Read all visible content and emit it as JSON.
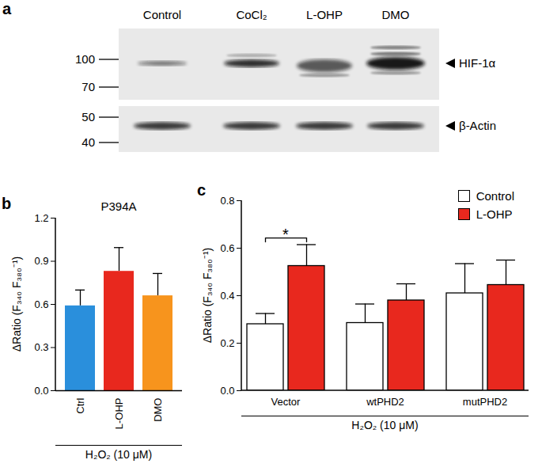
{
  "blot": {
    "panel_label": "a",
    "lanes": [
      "Control",
      "CoCl₂",
      "L-OHP",
      "DMO"
    ],
    "blots": [
      {
        "protein": "HIF-1α",
        "markers": [
          100,
          70
        ]
      },
      {
        "protein": "β-Actin",
        "markers": [
          50,
          40
        ]
      }
    ]
  },
  "chart_data": [
    {
      "type": "bar",
      "panel_label": "b",
      "title": "P394A",
      "categories": [
        "Ctrl",
        "L-OHP",
        "DMO"
      ],
      "values": [
        0.59,
        0.83,
        0.66
      ],
      "errors": [
        0.11,
        0.165,
        0.155
      ],
      "colors": [
        "#2a8fdc",
        "#e8281e",
        "#f7941d"
      ],
      "x_label": "H₂O₂ (10 μM)",
      "y_label": "ΔRatio (F₃₄₀ F₃₈₀⁻¹)",
      "ylim": [
        0,
        1.2
      ],
      "yticks": [
        {
          "value": 0,
          "label": "0.0"
        },
        0.3,
        0.6,
        0.9,
        1.2
      ]
    },
    {
      "type": "bar",
      "panel_label": "c",
      "categories": [
        "Vector",
        "wtPHD2",
        "mutPHD2"
      ],
      "series": [
        {
          "name": "Control",
          "color": "#ffffff",
          "values": [
            0.28,
            0.285,
            0.41
          ],
          "errors": [
            0.045,
            0.08,
            0.125
          ]
        },
        {
          "name": "L-OHP",
          "color": "#e8281e",
          "values": [
            0.525,
            0.38,
            0.445
          ],
          "errors": [
            0.09,
            0.07,
            0.105
          ]
        }
      ],
      "x_label": "H₂O₂ (10 μM)",
      "y_label": "ΔRatio (F₃₄₀ F₃₈₀⁻¹)",
      "ylim": [
        0,
        0.8
      ],
      "yticks": [
        {
          "value": 0,
          "label": "0.0"
        },
        0.2,
        0.4,
        0.6,
        0.8
      ],
      "legend": "top-right",
      "annotations": [
        {
          "text": "*",
          "category": "Vector",
          "between": [
            "Control",
            "L-OHP"
          ]
        }
      ]
    }
  ]
}
